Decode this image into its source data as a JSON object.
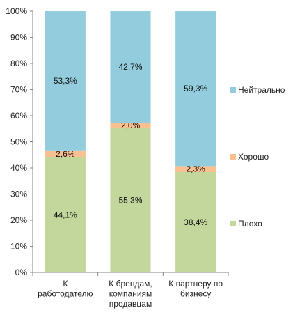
{
  "chart_data": {
    "type": "bar",
    "stacked": true,
    "percent": true,
    "categories": [
      [
        "К",
        "работодателю"
      ],
      [
        "К брендам,",
        "компаниям",
        "продавцам"
      ],
      [
        "К партнеру по",
        "бизнесу"
      ]
    ],
    "series": [
      {
        "name": "Плохо",
        "values": [
          44.1,
          55.3,
          38.4
        ],
        "labels": [
          "44,1%",
          "55,3%",
          "38,4%"
        ],
        "color": "#c3d69b"
      },
      {
        "name": "Хорошо",
        "values": [
          2.6,
          2.0,
          2.3
        ],
        "labels": [
          "2,6%",
          "2,0%",
          "2,3%"
        ],
        "color": "#fac090"
      },
      {
        "name": "Нейтрально",
        "values": [
          53.3,
          42.7,
          59.3
        ],
        "labels": [
          "53,3%",
          "42,7%",
          "59,3%"
        ],
        "color": "#93cddd"
      }
    ],
    "ylim": [
      0,
      100
    ],
    "yticks": [
      "0%",
      "10%",
      "20%",
      "30%",
      "40%",
      "50%",
      "60%",
      "70%",
      "80%",
      "90%",
      "100%"
    ],
    "legend_position": "right",
    "grid": false
  }
}
